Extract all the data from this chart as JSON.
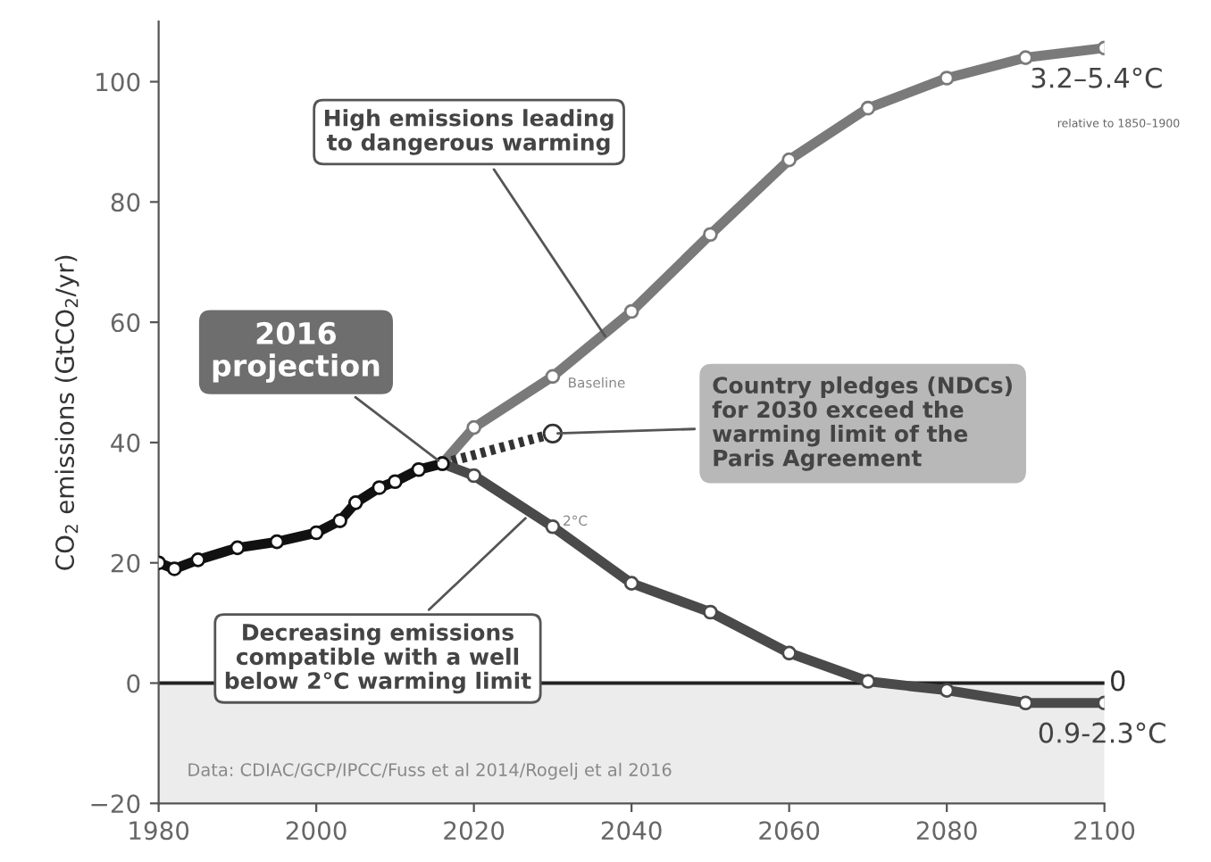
{
  "chart_data": {
    "type": "line",
    "ylabel": "CO$_{2}$ emissions (GtCO$_{2}$/yr)",
    "xlim": [
      1980,
      2100
    ],
    "ylim": [
      -20,
      110
    ],
    "xticks": [
      1980,
      2000,
      2020,
      2040,
      2060,
      2080,
      2100
    ],
    "yticks": [
      -20,
      0,
      20,
      40,
      60,
      80,
      100
    ],
    "grid": false,
    "legend": false,
    "marker": "circle",
    "series": [
      {
        "color": "#7a7a7a",
        "x": [
          2016,
          2020,
          2030,
          2040,
          2050,
          2060,
          2070,
          2080,
          2090,
          2100
        ],
        "values": [
          36.5,
          42.5,
          51,
          61.8,
          74.6,
          87,
          95.6,
          100.6,
          104,
          105.6
        ]
      },
      {
        "color": "#4a4a4a",
        "x": [
          2016,
          2020,
          2030,
          2040,
          2050,
          2060,
          2070,
          2080,
          2090,
          2100
        ],
        "values": [
          36.5,
          34.5,
          26,
          16.6,
          11.8,
          5,
          0.3,
          -1.2,
          -3.3,
          -3.3
        ]
      },
      {
        "color": "#333333",
        "line_style": "dotted",
        "x": [
          2016,
          2030
        ],
        "values": [
          36.5,
          41.5
        ]
      },
      {
        "color": "#111111",
        "x": [
          1980,
          1982,
          1985,
          1990,
          1995,
          2000,
          2003,
          2005,
          2008,
          2010,
          2013,
          2016
        ],
        "values": [
          20,
          19,
          20.5,
          22.5,
          23.5,
          25,
          27,
          30,
          32.5,
          33.5,
          35.5,
          36.5
        ]
      }
    ],
    "ref_lines": [
      {
        "axis": "y",
        "value": 0,
        "label": "0",
        "color": "#222222"
      }
    ],
    "bands": [
      {
        "axis": "y",
        "from": -20,
        "to": 0,
        "color": "#ececec"
      }
    ],
    "annotations": [
      {
        "text": "High emissions leading\nto dangerous warming",
        "x": 2037,
        "y": 57
      },
      {
        "text": "2016\nprojection",
        "x": 2016,
        "y": 36.5
      },
      {
        "text": "Country pledges (NDCs)\nfor 2030 exceed the\nwarming limit of the\nParis Agreement",
        "x": 2030,
        "y": 41.5
      },
      {
        "text": "Decreasing emissions\ncompatible with a well\nbelow 2°C warming limit",
        "x": 2027,
        "y": 28
      },
      {
        "text": "Baseline",
        "x": 2030,
        "y": 51
      },
      {
        "text": "2°C",
        "x": 2030,
        "y": 26
      },
      {
        "text": "3.2–5.4°C",
        "x": 2100,
        "y": 105.6
      },
      "relative to 1850–1900",
      {
        "text": "0.9-2.3°C",
        "x": 2100,
        "y": -3.3
      },
      "Data: CDIAC/GCP/IPCC/Fuss et al 2014/Rogelj et al 2016"
    ]
  }
}
